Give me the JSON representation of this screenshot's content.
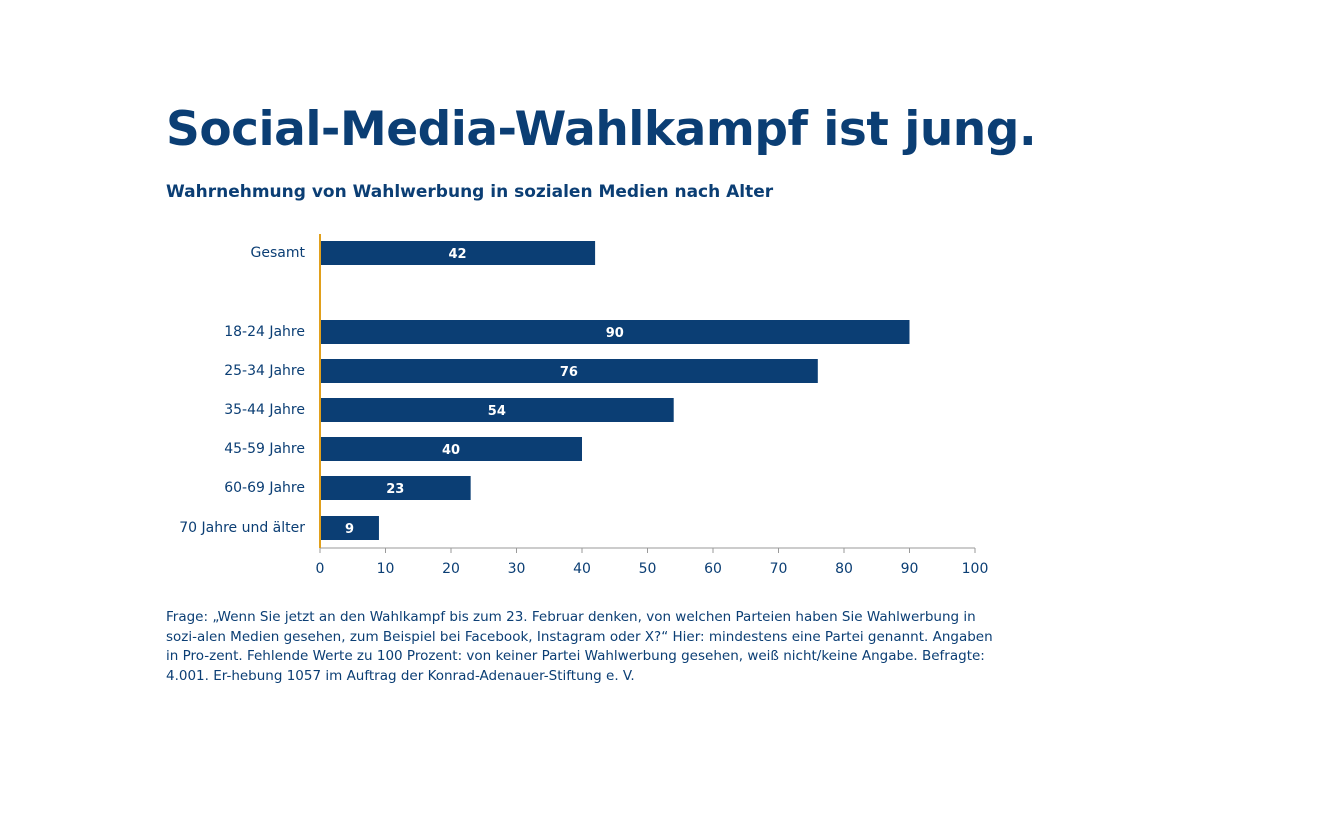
{
  "header": {
    "title": "Social-Media-Wahlkampf ist jung.",
    "subtitle": "Wahrnehmung von Wahlwerbung in sozialen Medien nach Alter"
  },
  "colors": {
    "bar": "#0b3e74",
    "axis_baseline": "#e1a01c",
    "text": "#0b3e74",
    "axis": "#9a9a9a"
  },
  "chart_data": {
    "type": "bar",
    "orientation": "horizontal",
    "categories": [
      "Gesamt",
      "18-24 Jahre",
      "25-34 Jahre",
      "35-44 Jahre",
      "45-59 Jahre",
      "60-69 Jahre",
      "70 Jahre und älter"
    ],
    "values": [
      42,
      90,
      76,
      54,
      40,
      23,
      9
    ],
    "data_labels": [
      "42",
      "90",
      "76",
      "54",
      "40",
      "23",
      "9"
    ],
    "x_ticks": [
      "0",
      "10",
      "20",
      "30",
      "40",
      "50",
      "60",
      "70",
      "80",
      "90",
      "100"
    ],
    "xlim": [
      0,
      100
    ],
    "grid": false,
    "legend": "none"
  },
  "footnote": "Frage: „Wenn Sie jetzt an den Wahlkampf bis zum 23. Februar denken, von welchen Parteien haben Sie Wahlwerbung in sozi-alen Medien gesehen, zum Beispiel bei Facebook, Instagram oder X?“ Hier: mindestens eine Partei genannt. Angaben in Pro-zent. Fehlende Werte zu 100 Prozent: von keiner Partei Wahlwerbung gesehen, weiß nicht/keine Angabe. Befragte: 4.001. Er-hebung 1057 im Auftrag der Konrad-Adenauer-Stiftung e. V."
}
